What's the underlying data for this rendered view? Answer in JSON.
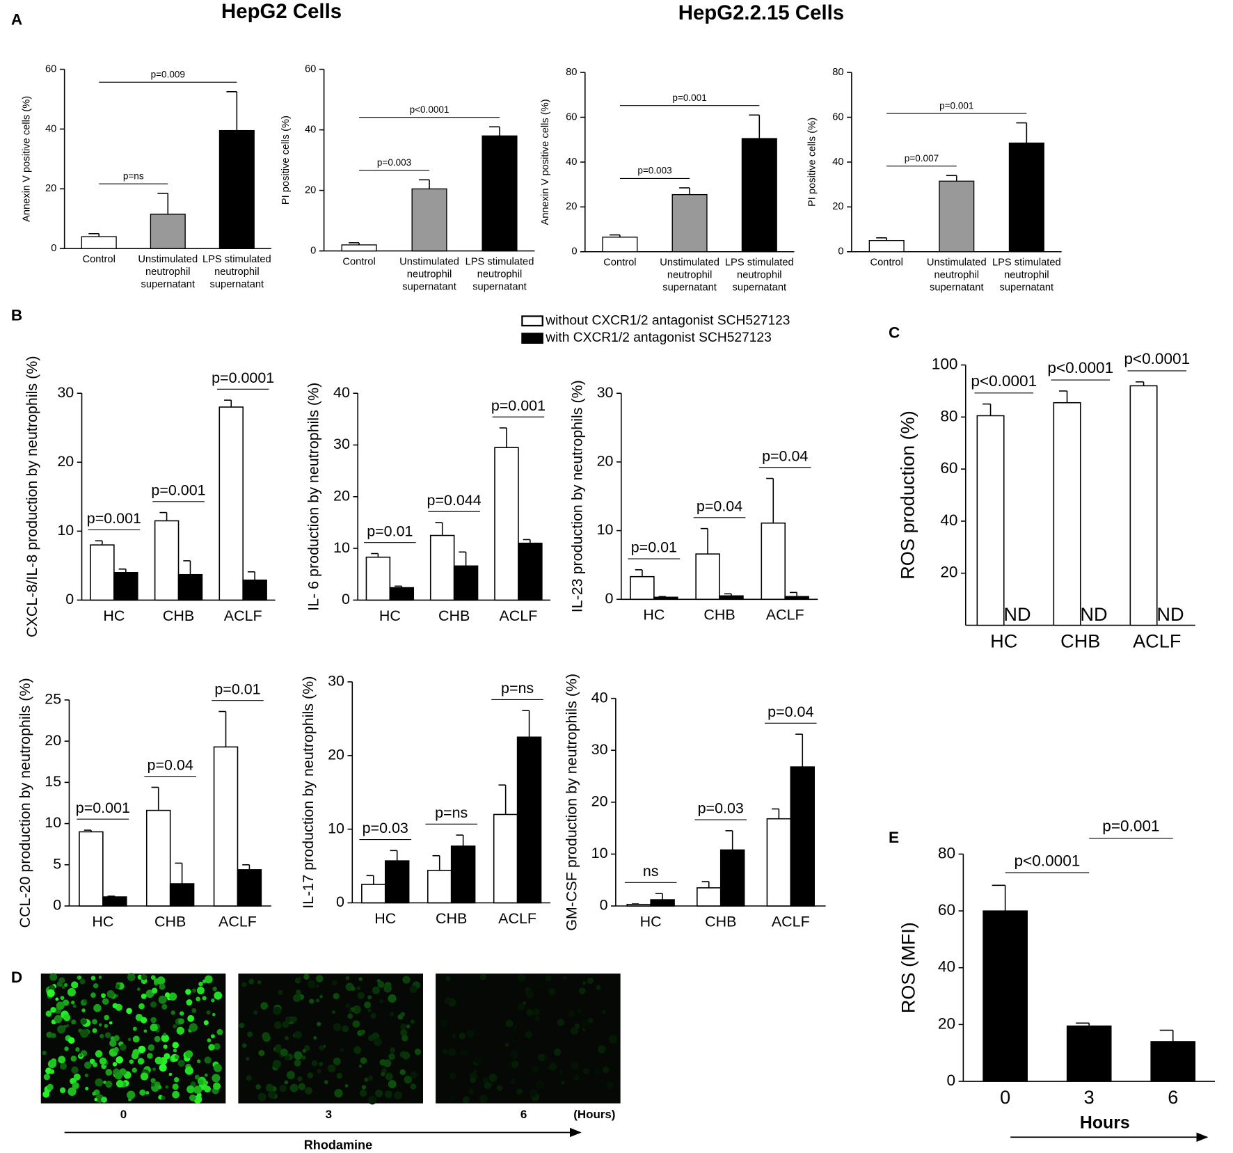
{
  "panel_labels": [
    "A",
    "B",
    "C",
    "D",
    "E"
  ],
  "headings": [
    "HepG2 Cells",
    "HepG2.2.15 Cells"
  ],
  "chart_data": [
    {
      "type": "bar",
      "ylabel": "Annexin V positive cells (%)",
      "categories": [
        [
          "Control"
        ],
        [
          "Unstimulated",
          "neutrophil",
          "supernatant"
        ],
        [
          "LPS stimulated",
          "neutrophil",
          "supernatant"
        ]
      ],
      "values": [
        4,
        11.5,
        39.5
      ],
      "errors": [
        1,
        7,
        13
      ],
      "colors": [
        "#ffffff",
        "#999999",
        "#000000"
      ],
      "ylim": [
        0,
        60
      ],
      "yticks": [
        0,
        20,
        40,
        60
      ],
      "annotations": [
        "p=ns",
        "p=0.009"
      ]
    },
    {
      "type": "bar",
      "ylabel": "PI positive cells (%)",
      "categories": [
        [
          "Control"
        ],
        [
          "Unstimulated",
          "neutrophil",
          "supernatant"
        ],
        [
          "LPS stimulated",
          "neutrophil",
          "supernatant"
        ]
      ],
      "values": [
        2,
        20.5,
        38
      ],
      "errors": [
        0.7,
        3,
        3
      ],
      "colors": [
        "#ffffff",
        "#999999",
        "#000000"
      ],
      "ylim": [
        0,
        60
      ],
      "yticks": [
        0,
        20,
        40,
        60
      ],
      "annotations": [
        "p=0.003",
        "p<0.0001"
      ]
    },
    {
      "type": "bar",
      "ylabel": "Annexin V positive cells (%)",
      "categories": [
        [
          "Control"
        ],
        [
          "Unstimulated",
          "neutrophil",
          "supernatant"
        ],
        [
          "LPS stimulated",
          "neutrophil",
          "supernatant"
        ]
      ],
      "values": [
        6.5,
        25.5,
        50.5
      ],
      "errors": [
        1,
        3,
        10.5
      ],
      "colors": [
        "#ffffff",
        "#999999",
        "#000000"
      ],
      "ylim": [
        0,
        80
      ],
      "yticks": [
        0,
        20,
        40,
        60,
        80
      ],
      "annotations": [
        "p=0.003",
        "p=0.001"
      ]
    },
    {
      "type": "bar",
      "ylabel": "PI positive cells (%)",
      "categories": [
        [
          "Control"
        ],
        [
          "Unstimulated",
          "neutrophil",
          "supernatant"
        ],
        [
          "LPS stimulated",
          "neutrophil",
          "supernatant"
        ]
      ],
      "values": [
        5,
        31.5,
        48.5
      ],
      "errors": [
        1.2,
        2.5,
        9
      ],
      "colors": [
        "#ffffff",
        "#999999",
        "#000000"
      ],
      "ylim": [
        0,
        80
      ],
      "yticks": [
        0,
        20,
        40,
        60,
        80
      ],
      "annotations": [
        "p=0.007",
        "p=0.001"
      ]
    },
    {
      "type": "bar",
      "ylabel": "CXCL-8/IL-8 production by neutrophils (%)",
      "categories": [
        "HC",
        "CHB",
        "ACLF"
      ],
      "series": [
        {
          "name": "without CXCR1/2 antagonist SCH527123",
          "color": "#ffffff",
          "values": [
            8,
            11.5,
            28
          ],
          "errors": [
            0.6,
            1.2,
            1
          ]
        },
        {
          "name": "with CXCR1/2 antagonist SCH527123",
          "color": "#000000",
          "values": [
            4,
            3.7,
            2.9
          ],
          "errors": [
            0.5,
            2,
            1.2
          ]
        }
      ],
      "ylim": [
        0,
        30
      ],
      "yticks": [
        0,
        10,
        20,
        30
      ],
      "annotations": [
        "p=0.001",
        "p=0.001",
        "p=0.0001"
      ],
      "legend": "top"
    },
    {
      "type": "bar",
      "ylabel": "IL- 6 production by neutrophils (%)",
      "categories": [
        "HC",
        "CHB",
        "ACLF"
      ],
      "series": [
        {
          "color": "#ffffff",
          "values": [
            8.3,
            12.5,
            29.5
          ],
          "errors": [
            0.7,
            2.5,
            3.8
          ]
        },
        {
          "color": "#000000",
          "values": [
            2.4,
            6.6,
            11
          ],
          "errors": [
            0.3,
            2.7,
            0.7
          ]
        }
      ],
      "ylim": [
        0,
        40
      ],
      "yticks": [
        0,
        10,
        20,
        30,
        40
      ],
      "annotations": [
        "p=0.01",
        "p=0.044",
        "p=0.001"
      ]
    },
    {
      "type": "bar",
      "ylabel": "IL-23 production by neutrophils (%)",
      "categories": [
        "HC",
        "CHB",
        "ACLF"
      ],
      "series": [
        {
          "color": "#ffffff",
          "values": [
            3.3,
            6.6,
            11.1
          ],
          "errors": [
            1,
            3.7,
            6.5
          ]
        },
        {
          "color": "#000000",
          "values": [
            0.3,
            0.5,
            0.4
          ],
          "errors": [
            0.1,
            0.3,
            0.6
          ]
        }
      ],
      "ylim": [
        0,
        30
      ],
      "yticks": [
        0,
        10,
        20,
        30
      ],
      "annotations": [
        "p=0.01",
        "p=0.04",
        "p=0.04"
      ]
    },
    {
      "type": "bar",
      "ylabel": "CCL-20 production by neutrophils (%)",
      "categories": [
        "HC",
        "CHB",
        "ACLF"
      ],
      "series": [
        {
          "color": "#ffffff",
          "values": [
            9,
            11.6,
            19.3
          ],
          "errors": [
            0.2,
            2.8,
            4.3
          ]
        },
        {
          "color": "#000000",
          "values": [
            1.1,
            2.7,
            4.4
          ],
          "errors": [
            0.1,
            2.5,
            0.6
          ]
        }
      ],
      "ylim": [
        0,
        25
      ],
      "yticks": [
        0,
        5,
        10,
        15,
        20,
        25
      ],
      "annotations": [
        "p=0.001",
        "p=0.04",
        "p=0.01"
      ]
    },
    {
      "type": "bar",
      "ylabel": "IL-17 production by neutrophils (%)",
      "categories": [
        "HC",
        "CHB",
        "ACLF"
      ],
      "series": [
        {
          "color": "#ffffff",
          "values": [
            2.5,
            4.4,
            12
          ],
          "errors": [
            1.2,
            2,
            4
          ]
        },
        {
          "color": "#000000",
          "values": [
            5.7,
            7.7,
            22.5
          ],
          "errors": [
            1.4,
            1.5,
            3.6
          ]
        }
      ],
      "ylim": [
        0,
        30
      ],
      "yticks": [
        0,
        10,
        20,
        30
      ],
      "annotations": [
        "p=0.03",
        "p=ns",
        "p=ns"
      ]
    },
    {
      "type": "bar",
      "ylabel": "GM-CSF production by neutrophils (%)",
      "categories": [
        "HC",
        "CHB",
        "ACLF"
      ],
      "series": [
        {
          "color": "#ffffff",
          "values": [
            0.3,
            3.5,
            16.8
          ],
          "errors": [
            0.1,
            1.2,
            1.9
          ]
        },
        {
          "color": "#000000",
          "values": [
            1.2,
            10.8,
            26.8
          ],
          "errors": [
            1.2,
            3.7,
            6.3
          ]
        }
      ],
      "ylim": [
        0,
        40
      ],
      "yticks": [
        0,
        10,
        20,
        30,
        40
      ],
      "annotations": [
        "ns",
        "p=0.03",
        "p=0.04"
      ]
    },
    {
      "type": "bar",
      "ylabel": "ROS production (%)",
      "categories": [
        "HC",
        "CHB",
        "ACLF"
      ],
      "series": [
        {
          "color": "#ffffff",
          "values": [
            80.5,
            85.5,
            92
          ],
          "errors": [
            4.5,
            4.5,
            1.5
          ]
        },
        {
          "color": "#000000",
          "values": [
            null,
            null,
            null
          ],
          "value_labels": [
            "ND",
            "ND",
            "ND"
          ]
        }
      ],
      "ylim": [
        0,
        100
      ],
      "yticks": [
        20,
        40,
        60,
        80,
        100
      ],
      "annotations": [
        "p<0.0001",
        "p<0.0001",
        "p<0.0001"
      ]
    },
    {
      "type": "bar",
      "ylabel": "ROS (MFI)",
      "xlabel": "Hours",
      "categories": [
        "0",
        "3",
        "6"
      ],
      "values": [
        60,
        19.5,
        14
      ],
      "errors": [
        9,
        1,
        4
      ],
      "colors": [
        "#000000",
        "#000000",
        "#000000"
      ],
      "ylim": [
        0,
        80
      ],
      "yticks": [
        0,
        20,
        40,
        60,
        80
      ],
      "annotations": [
        "p<0.0001",
        "p=0.001"
      ]
    }
  ],
  "panel_d": {
    "times": [
      "0",
      "3",
      "6"
    ],
    "unit": "(Hours)",
    "label": "Rhodamine"
  }
}
